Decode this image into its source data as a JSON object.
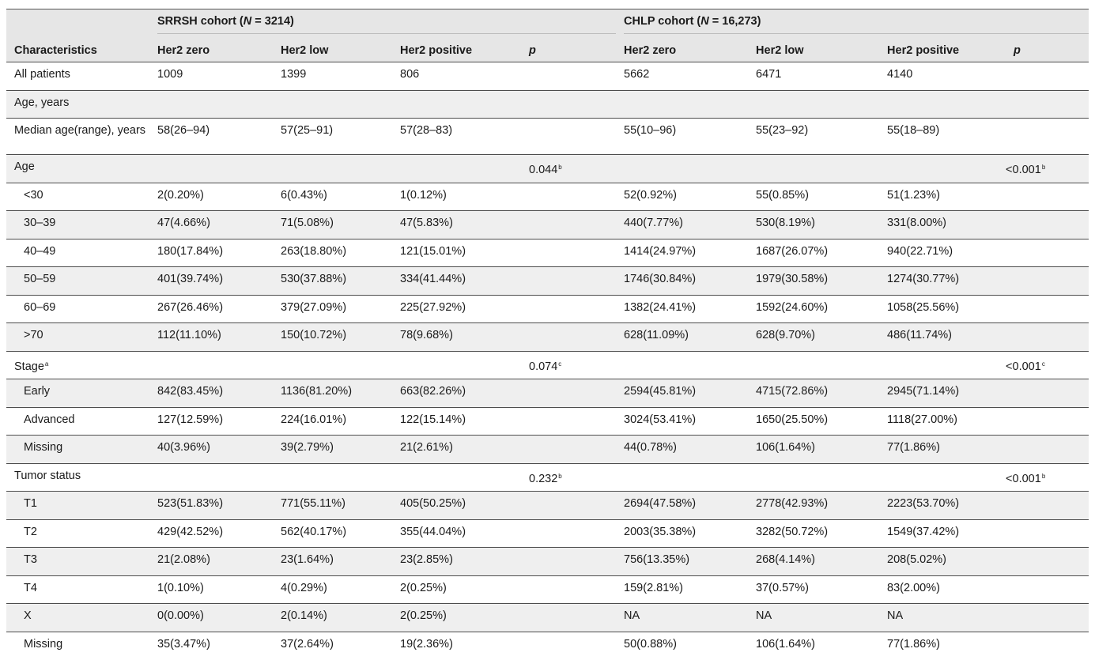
{
  "header": {
    "groups": [
      {
        "label_prefix": "SRRSH cohort (",
        "n_symbol": "N",
        "label_suffix": " = 3214)"
      },
      {
        "label_prefix": "CHLP cohort (",
        "n_symbol": "N",
        "label_suffix": " = 16,273)"
      }
    ],
    "columns": [
      "Characteristics",
      "Her2 zero",
      "Her2 low",
      "Her2 positive",
      "p",
      "Her2 zero",
      "Her2 low",
      "Her2 positive",
      "p"
    ]
  },
  "rows": [
    {
      "label": "All patients",
      "indent": false,
      "shade": false,
      "values": [
        "1009",
        "1399",
        "806",
        "",
        "5662",
        "6471",
        "4140",
        ""
      ]
    },
    {
      "label": "Age, years",
      "indent": false,
      "shade": true,
      "values": [
        "",
        "",
        "",
        "",
        "",
        "",
        "",
        ""
      ]
    },
    {
      "label": "Median age(range), years",
      "indent": false,
      "shade": false,
      "tall": true,
      "values": [
        "58(26–94)",
        "57(25–91)",
        "57(28–83)",
        "",
        "55(10–96)",
        "55(23–92)",
        "55(18–89)",
        ""
      ]
    },
    {
      "label": "Age",
      "indent": false,
      "shade": true,
      "values": [
        "",
        "",
        "",
        "0.044",
        "",
        "",
        "",
        "<0.001"
      ],
      "p_sup": [
        "b",
        "b"
      ]
    },
    {
      "label": "<30",
      "indent": true,
      "shade": false,
      "values": [
        "2(0.20%)",
        "6(0.43%)",
        "1(0.12%)",
        "",
        "52(0.92%)",
        "55(0.85%)",
        "51(1.23%)",
        ""
      ]
    },
    {
      "label": "30–39",
      "indent": true,
      "shade": true,
      "values": [
        "47(4.66%)",
        "71(5.08%)",
        "47(5.83%)",
        "",
        "440(7.77%)",
        "530(8.19%)",
        "331(8.00%)",
        ""
      ]
    },
    {
      "label": "40–49",
      "indent": true,
      "shade": false,
      "values": [
        "180(17.84%)",
        "263(18.80%)",
        "121(15.01%)",
        "",
        "1414(24.97%)",
        "1687(26.07%)",
        "940(22.71%)",
        ""
      ]
    },
    {
      "label": "50–59",
      "indent": true,
      "shade": true,
      "values": [
        "401(39.74%)",
        "530(37.88%)",
        "334(41.44%)",
        "",
        "1746(30.84%)",
        "1979(30.58%)",
        "1274(30.77%)",
        ""
      ]
    },
    {
      "label": "60–69",
      "indent": true,
      "shade": false,
      "values": [
        "267(26.46%)",
        "379(27.09%)",
        "225(27.92%)",
        "",
        "1382(24.41%)",
        "1592(24.60%)",
        "1058(25.56%)",
        ""
      ]
    },
    {
      "label": ">70",
      "indent": true,
      "shade": true,
      "values": [
        "112(11.10%)",
        "150(10.72%)",
        "78(9.68%)",
        "",
        "628(11.09%)",
        "628(9.70%)",
        "486(11.74%)",
        ""
      ]
    },
    {
      "label": "Stage",
      "label_sup": "a",
      "indent": false,
      "shade": false,
      "values": [
        "",
        "",
        "",
        "0.074",
        "",
        "",
        "",
        "<0.001"
      ],
      "p_sup": [
        "c",
        "c"
      ]
    },
    {
      "label": "Early",
      "indent": true,
      "shade": true,
      "values": [
        "842(83.45%)",
        "1136(81.20%)",
        "663(82.26%)",
        "",
        "2594(45.81%)",
        "4715(72.86%)",
        "2945(71.14%)",
        ""
      ]
    },
    {
      "label": "Advanced",
      "indent": true,
      "shade": false,
      "values": [
        "127(12.59%)",
        "224(16.01%)",
        "122(15.14%)",
        "",
        "3024(53.41%)",
        "1650(25.50%)",
        "1118(27.00%)",
        ""
      ]
    },
    {
      "label": "Missing",
      "indent": true,
      "shade": true,
      "values": [
        "40(3.96%)",
        "39(2.79%)",
        "21(2.61%)",
        "",
        "44(0.78%)",
        "106(1.64%)",
        "77(1.86%)",
        ""
      ]
    },
    {
      "label": "Tumor status",
      "indent": false,
      "shade": false,
      "values": [
        "",
        "",
        "",
        "0.232",
        "",
        "",
        "",
        "<0.001"
      ],
      "p_sup": [
        "b",
        "b"
      ]
    },
    {
      "label": "T1",
      "indent": true,
      "shade": true,
      "values": [
        "523(51.83%)",
        "771(55.11%)",
        "405(50.25%)",
        "",
        "2694(47.58%)",
        "2778(42.93%)",
        "2223(53.70%)",
        ""
      ]
    },
    {
      "label": "T2",
      "indent": true,
      "shade": false,
      "values": [
        "429(42.52%)",
        "562(40.17%)",
        "355(44.04%)",
        "",
        "2003(35.38%)",
        "3282(50.72%)",
        "1549(37.42%)",
        ""
      ]
    },
    {
      "label": "T3",
      "indent": true,
      "shade": true,
      "values": [
        "21(2.08%)",
        "23(1.64%)",
        "23(2.85%)",
        "",
        "756(13.35%)",
        "268(4.14%)",
        "208(5.02%)",
        ""
      ]
    },
    {
      "label": "T4",
      "indent": true,
      "shade": false,
      "values": [
        "1(0.10%)",
        "4(0.29%)",
        "2(0.25%)",
        "",
        "159(2.81%)",
        "37(0.57%)",
        "83(2.00%)",
        ""
      ]
    },
    {
      "label": "X",
      "indent": true,
      "shade": true,
      "values": [
        "0(0.00%)",
        "2(0.14%)",
        "2(0.25%)",
        "",
        "NA",
        "NA",
        "NA",
        ""
      ]
    },
    {
      "label": "Missing",
      "indent": true,
      "shade": false,
      "values": [
        "35(3.47%)",
        "37(2.64%)",
        "19(2.36%)",
        "",
        "50(0.88%)",
        "106(1.64%)",
        "77(1.86%)",
        ""
      ]
    }
  ]
}
